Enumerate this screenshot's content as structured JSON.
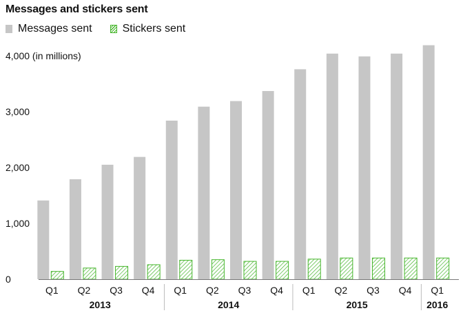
{
  "chart_data": {
    "type": "bar",
    "title": "Messages and stickers sent",
    "ylabel": "(in millions)",
    "ylim": [
      0,
      4000
    ],
    "yticks": [
      "0",
      "1,000",
      "2,000",
      "3,000",
      "4,000"
    ],
    "categories": [
      "Q1",
      "Q2",
      "Q3",
      "Q4",
      "Q1",
      "Q2",
      "Q3",
      "Q4",
      "Q1",
      "Q2",
      "Q3",
      "Q4",
      "Q1"
    ],
    "years": [
      {
        "label": "2013",
        "count": 4
      },
      {
        "label": "2014",
        "count": 4
      },
      {
        "label": "2015",
        "count": 4
      },
      {
        "label": "2016",
        "count": 1
      }
    ],
    "series": [
      {
        "name": "Messages sent",
        "color": "#c6c6c6",
        "values": [
          1410,
          1790,
          2050,
          2190,
          2840,
          3090,
          3190,
          3370,
          3760,
          4040,
          3990,
          4040,
          4190
        ]
      },
      {
        "name": "Stickers sent",
        "color": "#45b52b",
        "values": [
          140,
          200,
          230,
          260,
          340,
          350,
          320,
          320,
          360,
          380,
          380,
          380,
          380
        ]
      }
    ],
    "legend": "top-left",
    "grid": false
  }
}
